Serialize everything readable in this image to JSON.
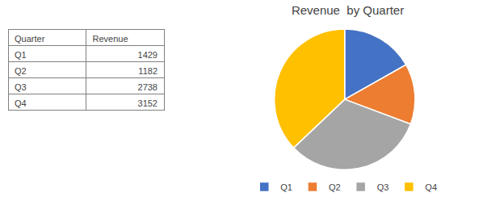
{
  "chart_data": [
    {
      "type": "table",
      "xlabel": "Quarter",
      "categories": [
        "Q1",
        "Q2",
        "Q3",
        "Q4"
      ],
      "series": [
        {
          "name": "Revenue",
          "values": [
            1429,
            1182,
            2738,
            3152
          ]
        }
      ]
    },
    {
      "type": "pie",
      "title": "Revenue  by Quarter",
      "categories": [
        "Q1",
        "Q2",
        "Q3",
        "Q4"
      ],
      "values": [
        1429,
        1182,
        2738,
        3152
      ],
      "colors": [
        "#4472C4",
        "#ED7D31",
        "#A5A5A5",
        "#FFC000"
      ],
      "legend": "bottom"
    }
  ]
}
